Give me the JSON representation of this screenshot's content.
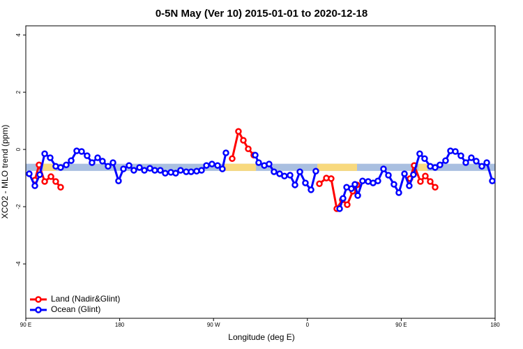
{
  "chart_data": {
    "type": "line",
    "title": "0-5N May (Ver 10)   2015-01-01 to 2020-12-18",
    "x_label": "Longitude (deg E)",
    "y_label": "XCO2 - MLO trend (ppm)",
    "xlim": [
      90,
      540
    ],
    "xticks": [
      {
        "value": 90,
        "label": "90 E"
      },
      180,
      {
        "value": 270,
        "label": "90 W"
      },
      {
        "value": 360,
        "label": "0"
      },
      {
        "value": 450,
        "label": "90 E"
      },
      {
        "value": 540,
        "label": "180"
      }
    ],
    "ylim": [
      -5.9,
      4.32
    ],
    "yticks": [
      -4,
      -2,
      0,
      2,
      4
    ],
    "legend": "bottom-left",
    "band": {
      "ylim": [
        -0.75,
        -0.5
      ],
      "color": "#a9bfe0",
      "highlight_color": "#f8d97e",
      "highlights": [
        [
          106.7,
          118.7
        ],
        [
          280.5,
          310.7
        ],
        [
          369.5,
          407.6
        ],
        [
          466.4,
          475.1
        ]
      ]
    },
    "series": [
      {
        "name": "Land (Nadir&Glint)",
        "color": "#ff0000",
        "x": [
          98.7,
          102.7,
          108.1,
          114.1,
          118.7,
          123.4,
          null,
          287.9,
          293.9,
          298.6,
          303.3,
          308.6,
          null,
          371.5,
          378.2,
          382.8,
          388.2,
          393.5,
          398.2,
          403.6,
          407.6,
          null,
          458.4,
          462.4,
          468.4,
          473.1,
          477.8,
          482.5
        ],
        "values": [
          -1.07,
          -0.54,
          -1.12,
          -0.95,
          -1.12,
          -1.32,
          null,
          -0.32,
          0.63,
          0.32,
          0.02,
          -0.2,
          null,
          -1.2,
          -1.0,
          -1.02,
          -2.07,
          -1.76,
          -1.93,
          -1.46,
          -1.24,
          null,
          -1.02,
          -0.56,
          -1.12,
          -0.93,
          -1.12,
          -1.32
        ]
      },
      {
        "name": "Ocean (Glint)",
        "color": "#0000ff",
        "x": [
          93.3,
          98.7,
          103.4,
          108.1,
          113.4,
          118.7,
          123.4,
          128.8,
          133.5,
          138.8,
          143.5,
          148.8,
          153.5,
          158.9,
          163.5,
          168.9,
          173.6,
          178.9,
          183.6,
          189.0,
          193.6,
          199.0,
          203.7,
          209.0,
          213.7,
          219.0,
          223.7,
          229.1,
          233.7,
          238.4,
          243.8,
          248.5,
          253.8,
          258.5,
          263.2,
          268.5,
          273.9,
          278.5,
          281.9,
          null,
          310.0,
          313.3,
          318.7,
          323.3,
          328.0,
          333.4,
          338.0,
          343.4,
          348.1,
          352.8,
          358.1,
          363.5,
          368.1,
          null,
          390.9,
          394.2,
          397.6,
          402.2,
          405.6,
          408.3,
          412.9,
          418.3,
          423.0,
          427.6,
          433.0,
          437.7,
          443.0,
          447.7,
          453.1,
          457.7,
          461.7,
          467.7,
          472.4,
          477.8,
          482.5,
          487.1,
          492.5,
          497.2,
          501.9,
          507.2,
          511.9,
          517.2,
          521.9,
          527.3,
          532.0,
          537.3
        ],
        "values": [
          -0.85,
          -1.27,
          -0.88,
          -0.15,
          -0.29,
          -0.59,
          -0.63,
          -0.54,
          -0.39,
          -0.05,
          -0.07,
          -0.22,
          -0.46,
          -0.29,
          -0.41,
          -0.59,
          -0.46,
          -1.1,
          -0.68,
          -0.56,
          -0.73,
          -0.63,
          -0.73,
          -0.66,
          -0.73,
          -0.73,
          -0.83,
          -0.8,
          -0.83,
          -0.73,
          -0.78,
          -0.78,
          -0.76,
          -0.73,
          -0.56,
          -0.51,
          -0.56,
          -0.68,
          -0.12,
          null,
          -0.2,
          -0.46,
          -0.56,
          -0.51,
          -0.78,
          -0.85,
          -0.93,
          -0.9,
          -1.24,
          -0.78,
          -1.17,
          -1.41,
          -0.76,
          null,
          -2.07,
          -1.71,
          -1.32,
          -1.37,
          -1.22,
          -1.61,
          -1.1,
          -1.12,
          -1.17,
          -1.1,
          -0.68,
          -0.9,
          -1.22,
          -1.51,
          -0.85,
          -1.27,
          -0.88,
          -0.15,
          -0.32,
          -0.59,
          -0.63,
          -0.54,
          -0.39,
          -0.05,
          -0.07,
          -0.22,
          -0.46,
          -0.29,
          -0.41,
          -0.59,
          -0.46,
          -1.1
        ]
      }
    ]
  }
}
